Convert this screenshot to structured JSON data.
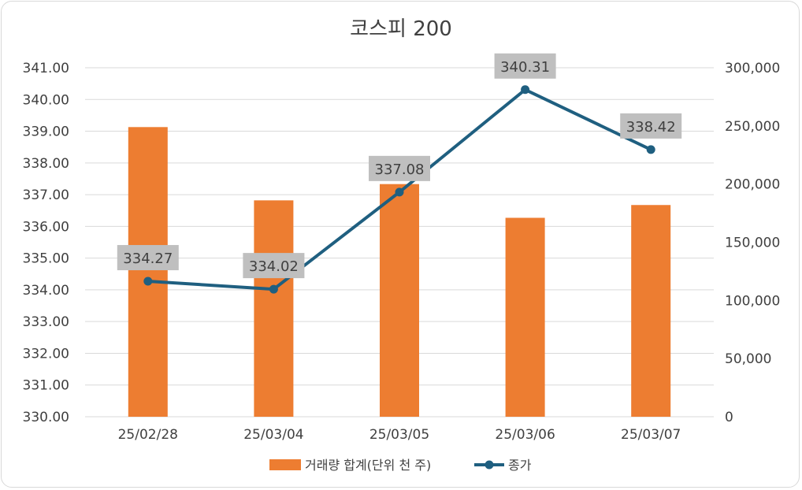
{
  "chart_data": {
    "type": "bar+line",
    "title": "코스피 200",
    "categories": [
      "25/02/28",
      "25/03/04",
      "25/03/05",
      "25/03/06",
      "25/03/07"
    ],
    "series": [
      {
        "name": "거래량 합계(단위 천 주)",
        "type": "bar",
        "axis": "right",
        "color": "#ED7D31",
        "values": [
          249000,
          186000,
          200000,
          171000,
          182000
        ]
      },
      {
        "name": "종가",
        "type": "line",
        "axis": "left",
        "color": "#1F5F80",
        "values": [
          334.27,
          334.02,
          337.08,
          340.31,
          338.42
        ],
        "labels": [
          "334.27",
          "334.02",
          "337.08",
          "340.31",
          "338.42"
        ]
      }
    ],
    "y_left": {
      "min": 330,
      "max": 341,
      "step": 1,
      "ticks": [
        "330.00",
        "331.00",
        "332.00",
        "333.00",
        "334.00",
        "335.00",
        "336.00",
        "337.00",
        "338.00",
        "339.00",
        "340.00",
        "341.00"
      ]
    },
    "y_right": {
      "min": 0,
      "max": 300000,
      "step": 50000,
      "ticks": [
        "0",
        "50,000",
        "100,000",
        "150,000",
        "200,000",
        "250,000",
        "300,000"
      ]
    },
    "grid": true,
    "legend_position": "bottom"
  }
}
